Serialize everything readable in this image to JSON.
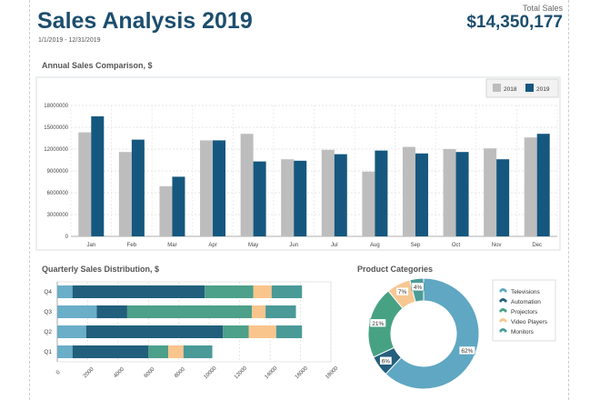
{
  "header": {
    "title": "Sales Analysis 2019",
    "date_range": "1/1/2019 - 12/31/2019",
    "total_label": "Total Sales",
    "total_value": "$14,350,177"
  },
  "colors": {
    "title": "#1c4e6e",
    "series_2018": "#bdbdbd",
    "series_2019": "#15577e",
    "quarter_segments": [
      "#6aaec8",
      "#215f7c",
      "#4da089",
      "#f9c58d",
      "#4a9a98"
    ],
    "categories": [
      "#5fa7c2",
      "#245f7d",
      "#47a284",
      "#f7c792",
      "#4b9c99"
    ]
  },
  "chart_data": [
    {
      "type": "bar",
      "title": "Annual Sales Comparison, $",
      "categories": [
        "Jan",
        "Feb",
        "Mar",
        "Apr",
        "May",
        "Jun",
        "Jul",
        "Aug",
        "Sep",
        "Oct",
        "Nov",
        "Dec"
      ],
      "series": [
        {
          "name": "2018",
          "values": [
            14300000,
            11600000,
            6900000,
            13200000,
            14100000,
            10600000,
            11900000,
            8900000,
            12300000,
            12000000,
            12100000,
            13600000
          ]
        },
        {
          "name": "2019",
          "values": [
            16500000,
            13300000,
            8200000,
            13200000,
            10300000,
            10400000,
            11300000,
            11800000,
            11400000,
            11600000,
            10600000,
            14100000
          ]
        }
      ],
      "yticks": [
        "0",
        "3000000",
        "6000000",
        "9000000",
        "12000000",
        "15000000",
        "18000000"
      ],
      "ylim": [
        0,
        18000000
      ],
      "legend": "top-right",
      "grid": true
    },
    {
      "type": "bar",
      "orientation": "horizontal",
      "stacked": true,
      "title": "Quarterly Sales Distribution, $",
      "categories": [
        "Q1",
        "Q2",
        "Q3",
        "Q4"
      ],
      "series": [
        {
          "name": "Televisions",
          "values": [
            1000,
            1900,
            2600,
            1000
          ]
        },
        {
          "name": "Automation",
          "values": [
            5000,
            9000,
            2000,
            8700
          ]
        },
        {
          "name": "Projectors",
          "values": [
            1300,
            1700,
            8200,
            3200
          ]
        },
        {
          "name": "Video Players",
          "values": [
            1000,
            1800,
            900,
            1200
          ]
        },
        {
          "name": "Monitors",
          "values": [
            1900,
            1700,
            2000,
            2000
          ]
        }
      ],
      "xticks": [
        "0",
        "2000",
        "4000",
        "6000",
        "8000",
        "10000",
        "12000",
        "14000",
        "16000",
        "18000"
      ],
      "xlim": [
        0,
        18000
      ],
      "grid": true
    },
    {
      "type": "pie",
      "donut": true,
      "title": "Product Categories",
      "labels": [
        "Televisions",
        "Automation",
        "Projectors",
        "Video Players",
        "Monitors"
      ],
      "values": [
        62,
        6,
        21,
        7,
        4
      ],
      "value_labels": [
        "62%",
        "6%",
        "21%",
        "7%",
        "4%"
      ],
      "legend": "right"
    }
  ]
}
